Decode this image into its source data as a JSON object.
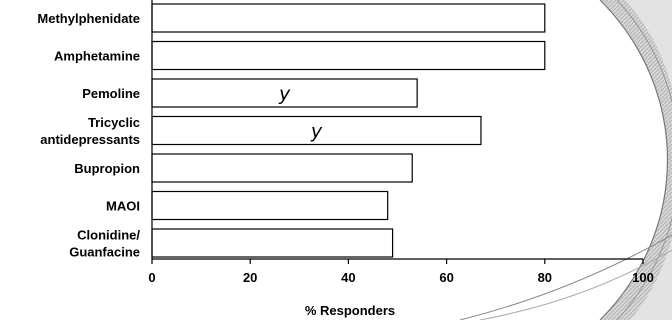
{
  "chart_data": {
    "type": "bar",
    "orientation": "horizontal",
    "categories": [
      "Methylphenidate",
      "Amphetamine",
      "Pemoline",
      "Tricyclic antidepressants",
      "Bupropion",
      "MAOI",
      "Clonidine/ Guanfacine"
    ],
    "category_lines": [
      [
        "Methylphenidate"
      ],
      [
        "Amphetamine"
      ],
      [
        "Pemoline"
      ],
      [
        "Tricyclic",
        "antidepressants"
      ],
      [
        "Bupropion"
      ],
      [
        "MAOI"
      ],
      [
        "Clonidine/",
        "Guanfacine"
      ]
    ],
    "values": [
      80,
      80,
      54,
      67,
      53,
      48,
      49
    ],
    "annotations": [
      "",
      "",
      "y",
      "y",
      "",
      "",
      ""
    ],
    "title": "",
    "xlabel": "% Responders",
    "ylabel": "",
    "xlim": [
      0,
      100
    ],
    "xticks": [
      0,
      20,
      40,
      60,
      80,
      100
    ],
    "grid": false,
    "bar_fill": "#ffffff",
    "bar_stroke": "#000000"
  }
}
